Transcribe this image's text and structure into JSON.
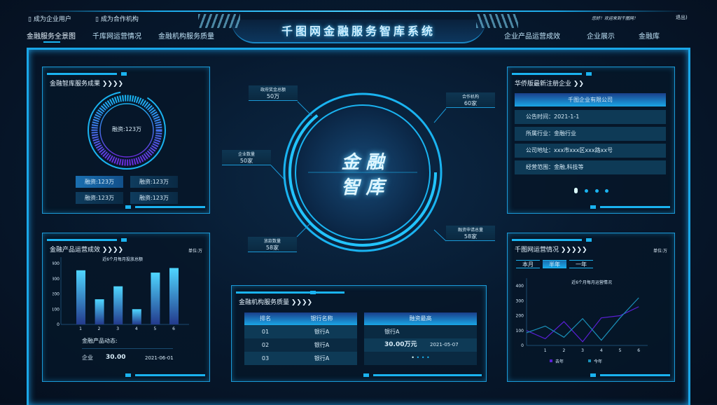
{
  "header": {
    "top_links": [
      "成为企业用户",
      "成为合作机构"
    ],
    "welcome": "您好！欢迎来到千图网！",
    "logout": "退出",
    "title": "千图网金融服务智库系统",
    "nav_left": [
      "金融服务全景图",
      "千库网运营情况",
      "金融机构服务质量"
    ],
    "nav_right": [
      "企业产品运营成效",
      "企业展示",
      "金融库"
    ],
    "active_nav": "金融服务全景图"
  },
  "panel_service": {
    "title": "金融智库服务成果",
    "center": "融资:123万",
    "chips": [
      "融资:123万",
      "融资:123万",
      "融资:123万",
      "融资:123万"
    ]
  },
  "panel_products": {
    "title": "金融产品运营成效",
    "unit": "单位:万",
    "dynamics_title": "金融产品动态:",
    "dynamics": {
      "name": "企业",
      "value": "30.00",
      "date": "2021-06-01"
    }
  },
  "center": {
    "title_line1": "金 融",
    "title_line2": "智 库",
    "callouts": [
      {
        "label": "政府奖金总额",
        "value": "50万"
      },
      {
        "label": "合作机构",
        "value": "60家"
      },
      {
        "label": "企业数量",
        "value": "50家"
      },
      {
        "label": "放款数量",
        "value": "58家"
      },
      {
        "label": "融资申请总量",
        "value": "58家"
      }
    ]
  },
  "panel_institutions": {
    "title": "金融机构服务质量",
    "headers": [
      "排名",
      "银行名称"
    ],
    "rows": [
      [
        "01",
        "银行A"
      ],
      [
        "02",
        "银行A"
      ],
      [
        "03",
        "银行A"
      ]
    ],
    "highlight_header": "融资最高",
    "highlight_bank": "银行A",
    "highlight_amount": "30.00万元",
    "highlight_date": "2021-05-07"
  },
  "panel_company": {
    "title": "华侨版最新注册企业",
    "company": "千图企业有限公司",
    "rows": [
      "公告时间：2021-1-1",
      "所属行业：金融行业",
      "公司地址：xxx市xxx区xxx路xx号",
      "经营范围：金融,科技等"
    ]
  },
  "panel_ops": {
    "title": "千图网运营情况",
    "unit": "单位:万",
    "tabs": [
      "本月",
      "半年",
      "一年"
    ],
    "active_tab": "半年"
  },
  "colors": {
    "accent": "#1ab3f0",
    "bar_top": "#4fd6ff",
    "bar_bottom": "#233a8c",
    "last_year": "#5a1fd6",
    "this_year": "#1a8fb8"
  },
  "chart_data": [
    {
      "type": "bar",
      "title": "近6个月每月投放总额",
      "categories": [
        "1",
        "2",
        "3",
        "4",
        "5",
        "6"
      ],
      "values": [
        355,
        165,
        250,
        100,
        340,
        370
      ],
      "yticks": [
        0,
        100,
        200,
        300,
        400
      ],
      "ylim": [
        0,
        450
      ],
      "grid": false
    },
    {
      "type": "line",
      "title": "近6个月每月运营情况",
      "x": [
        0,
        1,
        2,
        3,
        4,
        5,
        6
      ],
      "xticks": [
        1,
        2,
        3,
        4,
        5,
        6
      ],
      "yticks": [
        0,
        100,
        200,
        300,
        400
      ],
      "ylim": [
        0,
        450
      ],
      "grid": false,
      "legend": "bottom",
      "series": [
        {
          "name": "去年",
          "values": [
            100,
            45,
            160,
            25,
            185,
            200,
            260
          ]
        },
        {
          "name": "今年",
          "values": [
            85,
            130,
            55,
            180,
            35,
            185,
            320
          ]
        }
      ]
    }
  ]
}
